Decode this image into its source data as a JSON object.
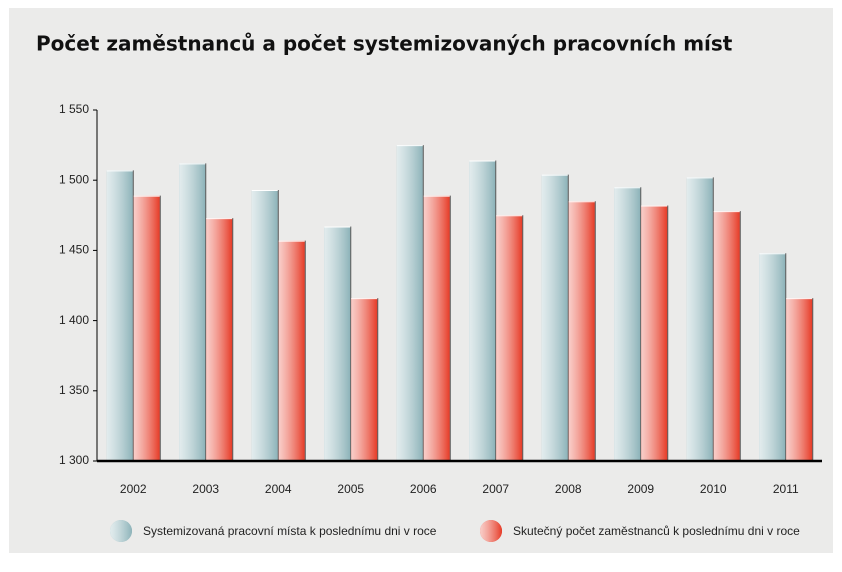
{
  "chart_data": {
    "type": "bar",
    "title": "Počet zaměstnanců a počet systemizovaných pracovních míst",
    "categories": [
      "2002",
      "2003",
      "2004",
      "2005",
      "2006",
      "2007",
      "2008",
      "2009",
      "2010",
      "2011"
    ],
    "series": [
      {
        "name": "Systemizovaná pracovní místa k poslednímu dni v roce",
        "color": "#8db3b9",
        "values": [
          1507,
          1512,
          1493,
          1467,
          1525,
          1514,
          1504,
          1495,
          1502,
          1448
        ]
      },
      {
        "name": "Skutečný počet zaměstnanců k poslednímu dni v roce",
        "color": "#e63b27",
        "values": [
          1489,
          1473,
          1457,
          1416,
          1489,
          1475,
          1485,
          1482,
          1478,
          1416
        ]
      }
    ],
    "ylim": [
      1300,
      1550
    ],
    "yticks": [
      {
        "value": 1300,
        "label": "1 300"
      },
      {
        "value": 1350,
        "label": "1 350"
      },
      {
        "value": 1400,
        "label": "1 400"
      },
      {
        "value": 1450,
        "label": "1 450"
      },
      {
        "value": 1500,
        "label": "1 500"
      },
      {
        "value": 1550,
        "label": "1 550"
      }
    ],
    "grid": false
  }
}
